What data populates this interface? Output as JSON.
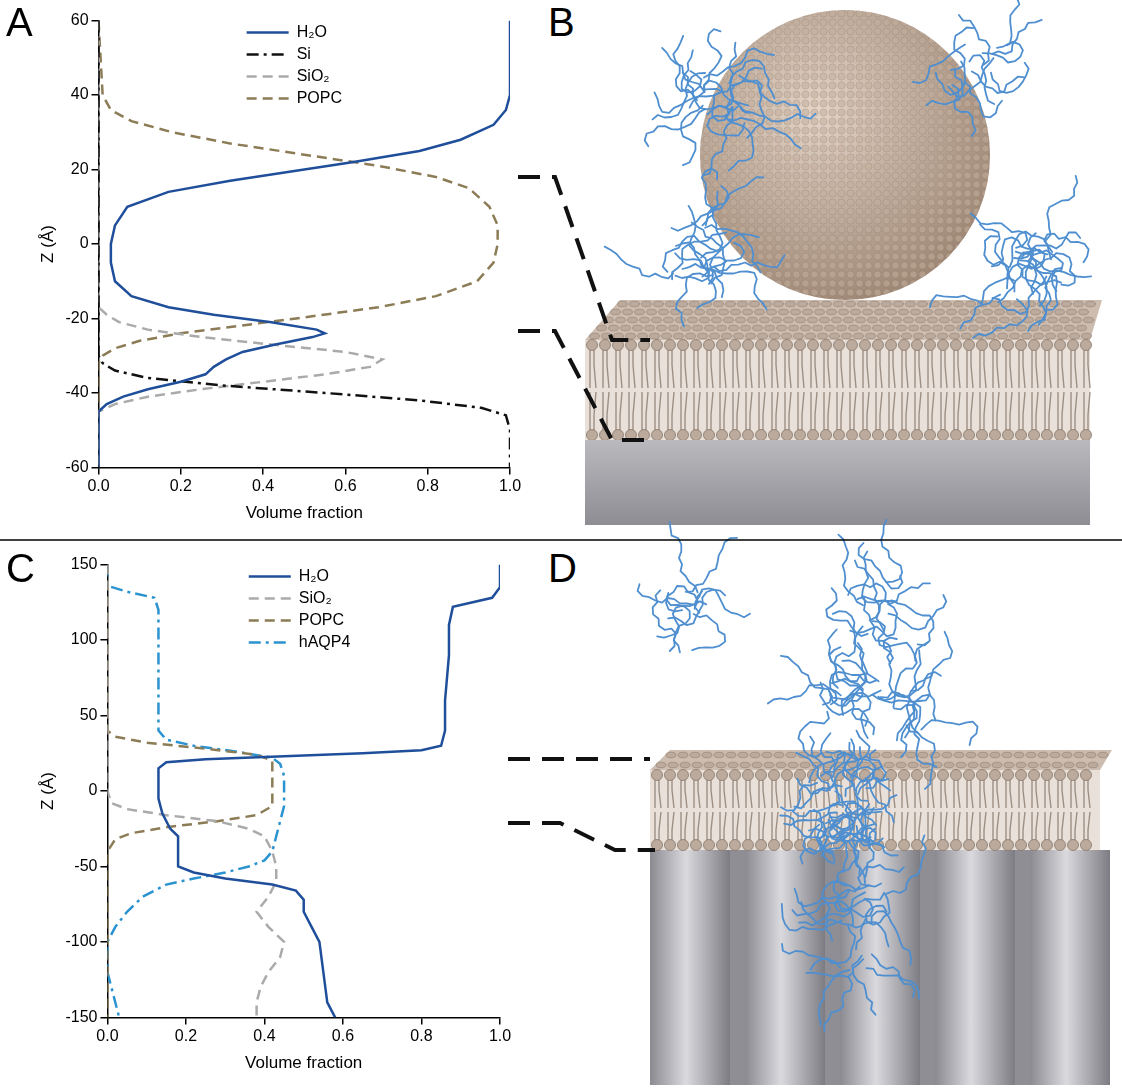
{
  "panel_labels": [
    "A",
    "B",
    "C",
    "D"
  ],
  "chart_data": [
    {
      "type": "line",
      "xlabel": "Volume fraction",
      "ylabel": "Z (Å)",
      "xlim": [
        0,
        1
      ],
      "xticks": [
        {
          "value": 0,
          "label": "0.0"
        },
        {
          "value": 0.2,
          "label": "0.2"
        },
        {
          "value": 0.4,
          "label": "0.4"
        },
        {
          "value": 0.6,
          "label": "0.6"
        },
        {
          "value": 0.8,
          "label": "0.8"
        },
        {
          "value": 1,
          "label": "1.0"
        }
      ],
      "ylim": [
        -60,
        60
      ],
      "yticks": [
        -60,
        -40,
        -20,
        0,
        20,
        40,
        60
      ],
      "grid": false,
      "legend": "top",
      "series": [
        {
          "name": "H₂O",
          "color": "#1f4e9a",
          "line_style": "solid",
          "y": [
            60,
            40,
            36,
            32,
            28,
            25,
            22,
            20,
            17,
            14,
            10,
            5,
            0,
            -5,
            -10,
            -14,
            -17,
            -19,
            -21,
            -23,
            -24,
            -25,
            -27,
            -29,
            -31,
            -33,
            -35,
            -37,
            -39,
            -41,
            -43,
            -45,
            -50,
            -60
          ],
          "x": [
            1.0,
            1.0,
            0.99,
            0.96,
            0.88,
            0.78,
            0.62,
            0.5,
            0.32,
            0.17,
            0.07,
            0.04,
            0.03,
            0.03,
            0.04,
            0.08,
            0.17,
            0.28,
            0.42,
            0.53,
            0.55,
            0.52,
            0.43,
            0.35,
            0.31,
            0.28,
            0.26,
            0.2,
            0.12,
            0.06,
            0.02,
            0,
            0,
            0
          ]
        },
        {
          "name": "Si",
          "color": "#111111",
          "line_style": "dashdot",
          "y": [
            60,
            -30,
            -32,
            -34,
            -36,
            -38,
            -40,
            -42,
            -44,
            -46,
            -50,
            -60
          ],
          "x": [
            0,
            0,
            0.01,
            0.04,
            0.12,
            0.3,
            0.55,
            0.78,
            0.93,
            0.99,
            1.0,
            1.0
          ]
        },
        {
          "name": "SiO₂",
          "color": "#aaaaaa",
          "line_style": "dashed",
          "y": [
            60,
            -17,
            -19,
            -21,
            -23,
            -25,
            -27,
            -29,
            -31,
            -33,
            -35,
            -37,
            -39,
            -41,
            -43,
            -45,
            -60
          ],
          "x": [
            0,
            0,
            0.02,
            0.05,
            0.12,
            0.25,
            0.42,
            0.6,
            0.69,
            0.66,
            0.55,
            0.4,
            0.25,
            0.12,
            0.04,
            0,
            0
          ]
        },
        {
          "name": "POPC",
          "color": "#8c7c56",
          "line_style": "dashed",
          "y": [
            60,
            40,
            36,
            33,
            30,
            27,
            24,
            21,
            18,
            15,
            10,
            5,
            0,
            -5,
            -10,
            -14,
            -17,
            -20,
            -22,
            -24,
            -26,
            -28,
            -30,
            -32,
            -60
          ],
          "x": [
            0,
            0.01,
            0.03,
            0.08,
            0.18,
            0.32,
            0.5,
            0.68,
            0.82,
            0.9,
            0.95,
            0.97,
            0.97,
            0.96,
            0.92,
            0.82,
            0.68,
            0.48,
            0.34,
            0.2,
            0.1,
            0.04,
            0.01,
            0,
            0
          ]
        }
      ]
    },
    {
      "type": "line",
      "xlabel": "Volume fraction",
      "ylabel": "Z (Å)",
      "xlim": [
        0,
        1
      ],
      "xticks": [
        {
          "value": 0,
          "label": "0.0"
        },
        {
          "value": 0.2,
          "label": "0.2"
        },
        {
          "value": 0.4,
          "label": "0.4"
        },
        {
          "value": 0.6,
          "label": "0.6"
        },
        {
          "value": 0.8,
          "label": "0.8"
        },
        {
          "value": 1,
          "label": "1.0"
        }
      ],
      "ylim": [
        -150,
        150
      ],
      "yticks": [
        -150,
        -100,
        -50,
        0,
        50,
        100,
        150
      ],
      "grid": false,
      "legend": "top",
      "series": [
        {
          "name": "H₂O",
          "color": "#1f4e9a",
          "line_style": "solid",
          "y": [
            150,
            135,
            128,
            122,
            110,
            90,
            60,
            40,
            30,
            27,
            25,
            23,
            21,
            19,
            15,
            5,
            -5,
            -15,
            -25,
            -30,
            -40,
            -50,
            -54,
            -58,
            -62,
            -66,
            -72,
            -80,
            -90,
            -100,
            -120,
            -140,
            -150
          ],
          "x": [
            1.0,
            1.0,
            0.98,
            0.88,
            0.87,
            0.87,
            0.86,
            0.86,
            0.85,
            0.8,
            0.65,
            0.45,
            0.25,
            0.15,
            0.13,
            0.13,
            0.13,
            0.14,
            0.16,
            0.18,
            0.18,
            0.18,
            0.22,
            0.3,
            0.42,
            0.48,
            0.5,
            0.5,
            0.52,
            0.54,
            0.55,
            0.56,
            0.58
          ]
        },
        {
          "name": "SiO₂",
          "color": "#aaaaaa",
          "line_style": "dashed",
          "y": [
            150,
            0,
            -8,
            -12,
            -16,
            -20,
            -25,
            -30,
            -40,
            -50,
            -60,
            -70,
            -80,
            -90,
            -100,
            -110,
            -120,
            -130,
            -140,
            -150
          ],
          "x": [
            0,
            0,
            0.01,
            0.05,
            0.15,
            0.28,
            0.36,
            0.4,
            0.42,
            0.43,
            0.43,
            0.41,
            0.38,
            0.41,
            0.45,
            0.44,
            0.41,
            0.39,
            0.38,
            0.38
          ]
        },
        {
          "name": "POPC",
          "color": "#8c7c56",
          "line_style": "dashed",
          "y": [
            150,
            40,
            36,
            32,
            28,
            24,
            20,
            10,
            0,
            -10,
            -16,
            -20,
            -24,
            -28,
            -32,
            -36,
            -40,
            -150
          ],
          "x": [
            0,
            0,
            0.02,
            0.1,
            0.25,
            0.38,
            0.42,
            0.42,
            0.42,
            0.42,
            0.38,
            0.28,
            0.15,
            0.06,
            0.02,
            0.01,
            0,
            0
          ]
        },
        {
          "name": "hAQP4",
          "color": "#2b93cf",
          "line_style": "dashdot",
          "y": [
            150,
            136,
            132,
            128,
            120,
            100,
            60,
            40,
            34,
            30,
            26,
            22,
            18,
            10,
            0,
            -10,
            -20,
            -30,
            -40,
            -46,
            -50,
            -54,
            -58,
            -62,
            -70,
            -80,
            -90,
            -100,
            -110,
            -120,
            -130,
            -140,
            -150
          ],
          "x": [
            0,
            0,
            0.05,
            0.12,
            0.13,
            0.13,
            0.13,
            0.13,
            0.15,
            0.22,
            0.33,
            0.42,
            0.44,
            0.45,
            0.45,
            0.45,
            0.44,
            0.43,
            0.42,
            0.4,
            0.36,
            0.3,
            0.22,
            0.15,
            0.09,
            0.05,
            0.02,
            0,
            0,
            0,
            0.01,
            0.02,
            0.03
          ]
        }
      ]
    }
  ]
}
